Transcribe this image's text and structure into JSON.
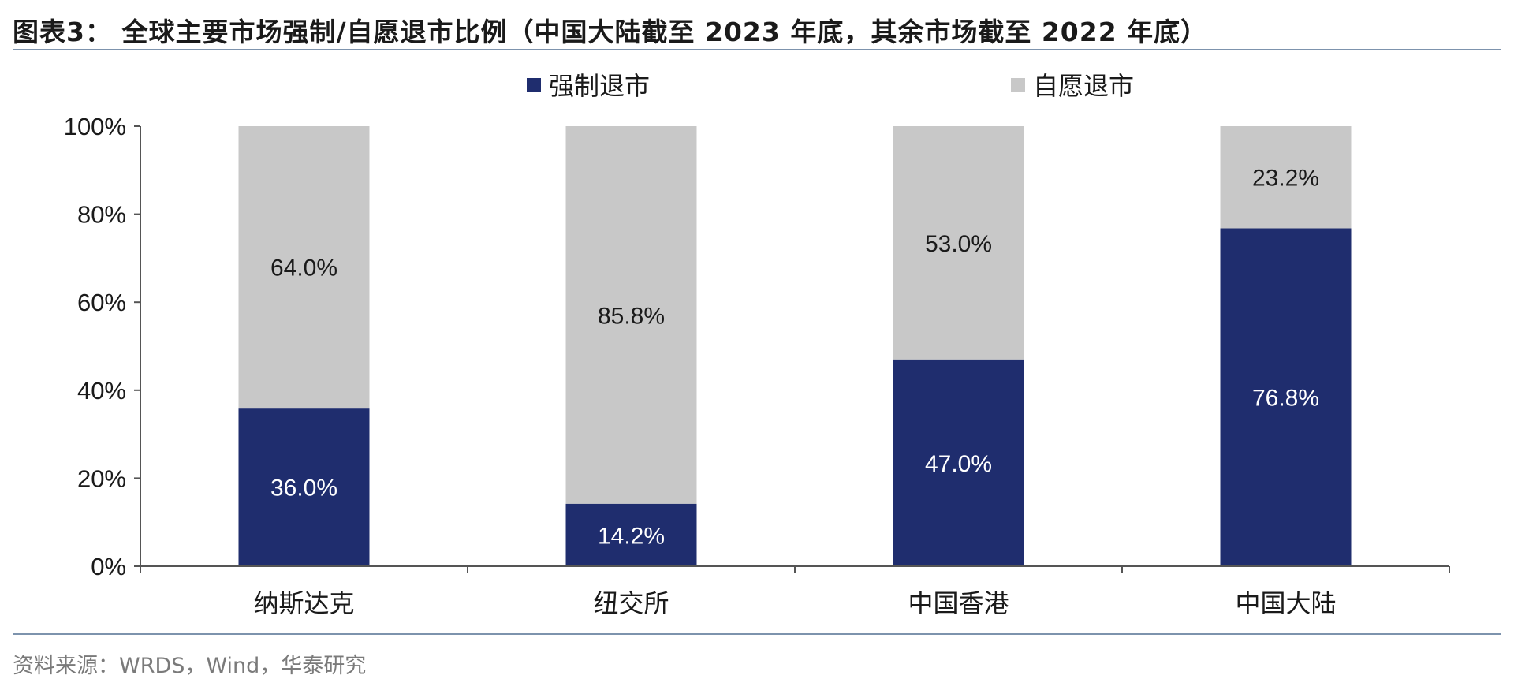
{
  "header": {
    "title": "图表3：  全球主要市场强制/自愿退市比例（中国大陆截至 2023 年底，其余市场截至 2022 年底）"
  },
  "footer": {
    "source": "资料来源：WRDS，Wind，华泰研究"
  },
  "chart_data": {
    "type": "bar",
    "stacked": true,
    "categories": [
      "纳斯达克",
      "纽交所",
      "中国香港",
      "中国大陆"
    ],
    "series": [
      {
        "name": "强制退市",
        "values": [
          36.0,
          14.2,
          47.0,
          76.8
        ],
        "color": "#1f2d6e",
        "label_color": "#ffffff"
      },
      {
        "name": "自愿退市",
        "values": [
          64.0,
          85.8,
          53.0,
          23.2
        ],
        "color": "#c8c8c8",
        "label_color": "#1a1a1a"
      }
    ],
    "data_labels": [
      [
        "36.0%",
        "14.2%",
        "47.0%",
        "76.8%"
      ],
      [
        "64.0%",
        "85.8%",
        "53.0%",
        "23.2%"
      ]
    ],
    "ylim": [
      0,
      100
    ],
    "yticks": [
      "0%",
      "20%",
      "40%",
      "60%",
      "80%",
      "100%"
    ],
    "legend_position": "top-center",
    "grid": false
  }
}
